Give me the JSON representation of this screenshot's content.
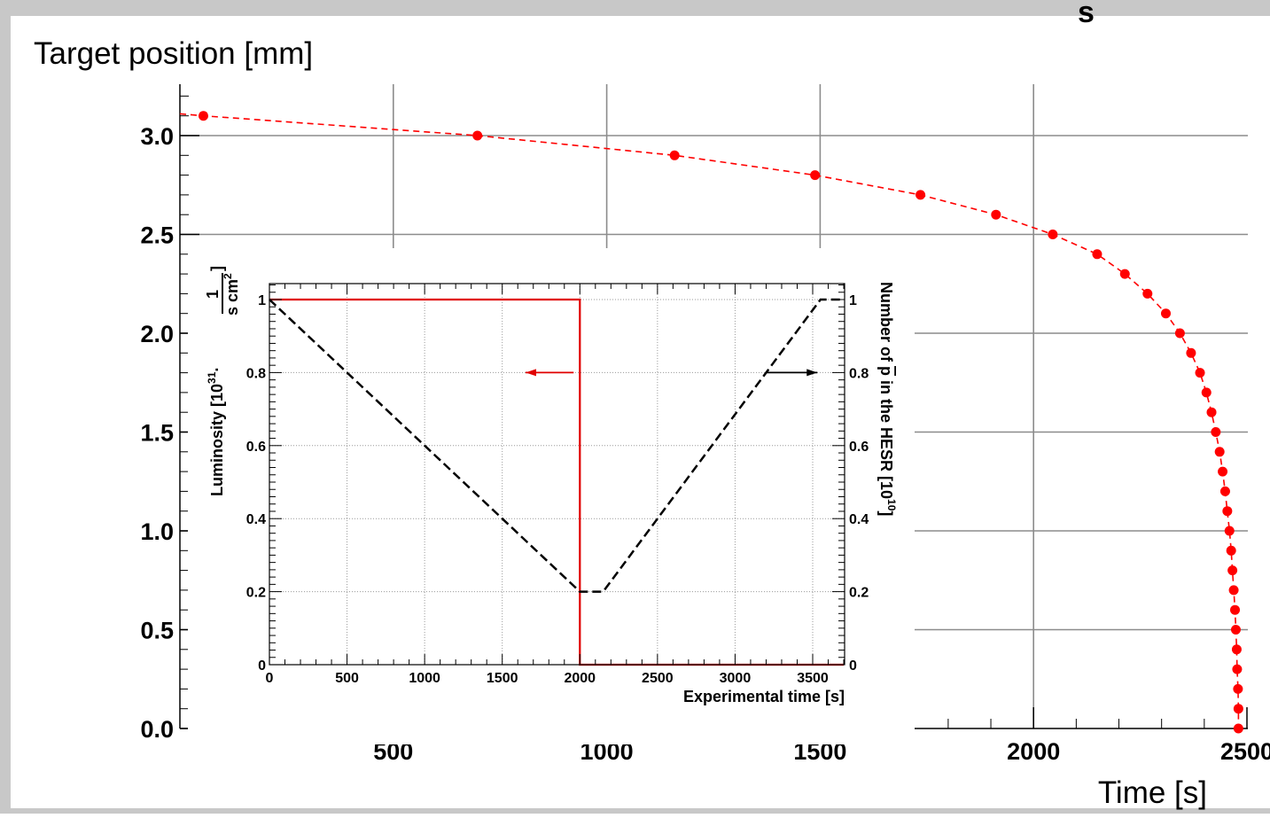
{
  "chart_data": [
    {
      "type": "scatter",
      "ylabel": "Target position [mm]",
      "xlabel": "Time [s]",
      "xlim": [
        0,
        2500
      ],
      "ylim": [
        0,
        3.25
      ],
      "grid": true,
      "x_ticks": [
        "500",
        "1000",
        "1500",
        "2000",
        "2500"
      ],
      "y_ticks": [
        "0.0",
        "0.5",
        "1.0",
        "1.5",
        "2.0",
        "2.5",
        "3.0"
      ],
      "series": [
        {
          "color": "#ff0000",
          "marker": "circle",
          "line": "dashed",
          "points": [
            [
              55,
              3.1
            ],
            [
              697,
              3.0
            ],
            [
              1159,
              2.9
            ],
            [
              1488,
              2.8
            ],
            [
              1735,
              2.7
            ],
            [
              1912,
              2.6
            ],
            [
              2045,
              2.5
            ],
            [
              2149,
              2.4
            ],
            [
              2214,
              2.3
            ],
            [
              2267,
              2.2
            ],
            [
              2310,
              2.1
            ],
            [
              2343,
              2.0
            ],
            [
              2369,
              1.9
            ],
            [
              2390,
              1.8
            ],
            [
              2405,
              1.7
            ],
            [
              2417,
              1.6
            ],
            [
              2427,
              1.5
            ],
            [
              2436,
              1.4
            ],
            [
              2443,
              1.3
            ],
            [
              2449,
              1.2
            ],
            [
              2454,
              1.1
            ],
            [
              2459,
              1.0
            ],
            [
              2463,
              0.9
            ],
            [
              2466,
              0.8
            ],
            [
              2469,
              0.7
            ],
            [
              2472,
              0.6
            ],
            [
              2474,
              0.5
            ],
            [
              2476,
              0.4
            ],
            [
              2477,
              0.3
            ],
            [
              2479,
              0.2
            ],
            [
              2480,
              0.1
            ],
            [
              2480,
              0.0
            ]
          ]
        }
      ],
      "title_fragment": "s"
    },
    {
      "type": "line",
      "xlabel": "Experimental time [s]",
      "ylabel_left_main": "Luminosity [10",
      "ylabel_left_exp": "31",
      "ylabel_left_frac_num": "1",
      "ylabel_left_frac_den": "s cm",
      "ylabel_left_frac_den_exp": "2",
      "ylabel_left_close": "]",
      "ylabel_right_pre": "Number of ",
      "ylabel_right_pbar": "p",
      "ylabel_right_post": " in the HESR [10",
      "ylabel_right_exp": "10",
      "ylabel_right_close": "]",
      "xlim": [
        0,
        3700
      ],
      "ylim_left": [
        0,
        1.05
      ],
      "ylim_right": [
        0,
        1.05
      ],
      "grid": true,
      "x_ticks": [
        "0",
        "500",
        "1000",
        "1500",
        "2000",
        "2500",
        "3000",
        "3500"
      ],
      "y_ticks_left": [
        "0",
        "0.2",
        "0.4",
        "0.6",
        "0.8",
        "1"
      ],
      "y_ticks_right": [
        "0",
        "0.2",
        "0.4",
        "0.6",
        "0.8",
        "1"
      ],
      "series": [
        {
          "axis": "left",
          "color": "#e00000",
          "line": "solid",
          "x": [
            0,
            2000,
            2000,
            3700
          ],
          "y": [
            1.0,
            1.0,
            0.0,
            0.0
          ]
        },
        {
          "axis": "right",
          "color": "#000000",
          "line": "dashed",
          "x": [
            0,
            2000,
            2150,
            3550,
            3700
          ],
          "y": [
            1.0,
            0.2,
            0.2,
            1.0,
            1.0
          ]
        }
      ],
      "arrows": [
        {
          "color": "#e00000",
          "direction": "left",
          "x_from": 1960,
          "x_to": 1650,
          "y": 0.8
        },
        {
          "color": "#000000",
          "direction": "right",
          "x_from": 3200,
          "x_to": 3530,
          "y": 0.8
        }
      ]
    }
  ]
}
